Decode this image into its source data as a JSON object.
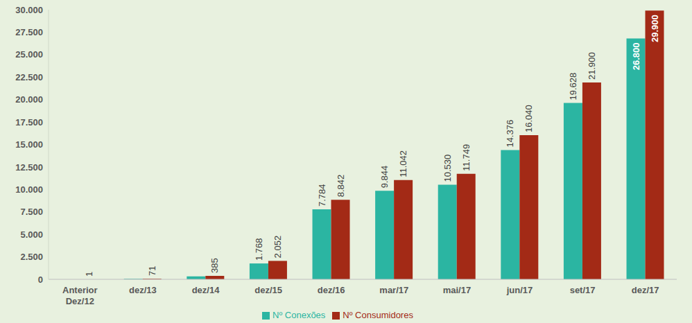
{
  "chart_data": {
    "type": "bar",
    "categories": [
      "Anterior Dez/12",
      "dez/13",
      "dez/14",
      "dez/15",
      "dez/16",
      "mar/17",
      "mai/17",
      "jun/17",
      "set/17",
      "dez/17"
    ],
    "series": [
      {
        "name": "Nº Conexões",
        "color": "#2bb5a2",
        "values": [
          1,
          60,
          330,
          1768,
          7784,
          9844,
          10530,
          14376,
          19628,
          26800
        ],
        "value_labels": [
          null,
          null,
          null,
          "1.768",
          "7.784",
          "9.844",
          "10.530",
          "14.376",
          "19.628",
          "26.800"
        ]
      },
      {
        "name": "Nº Consumidores",
        "color": "#a32a16",
        "values": [
          1,
          71,
          385,
          2052,
          8842,
          11042,
          11749,
          16040,
          21900,
          29900
        ],
        "value_labels": [
          "1",
          "71",
          "385",
          "2.052",
          "8.842",
          "11.042",
          "11.749",
          "16.040",
          "21.900",
          "29.900"
        ]
      }
    ],
    "ylim": [
      0,
      30000
    ],
    "yticks": [
      0,
      {
        "value": 2500,
        "label": "2.500"
      },
      {
        "value": 5000,
        "label": "5.000"
      },
      {
        "value": 7500,
        "label": "7.500"
      },
      {
        "value": 10000,
        "label": "10.000"
      },
      {
        "value": 12500,
        "label": "12.500"
      },
      {
        "value": 15000,
        "label": "15.000"
      },
      {
        "value": 17500,
        "label": "17.500"
      },
      {
        "value": 20000,
        "label": "20.000"
      },
      {
        "value": 22500,
        "label": "22.500"
      },
      {
        "value": 25000,
        "label": "25.000"
      },
      {
        "value": 27500,
        "label": "27.500"
      },
      {
        "value": 30000,
        "label": "30.000"
      }
    ],
    "grid": false,
    "legend": "bottom",
    "data_labels": true
  }
}
